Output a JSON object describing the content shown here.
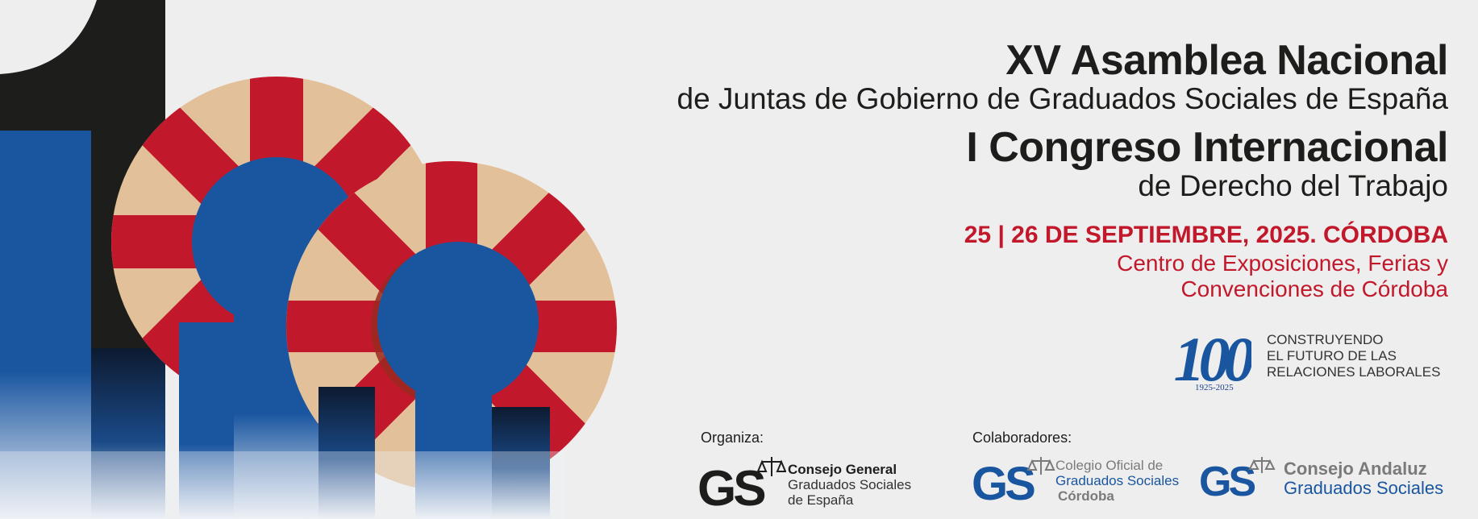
{
  "header": {
    "title_1": "XV Asamblea Nacional",
    "subtitle_1": "de Juntas de Gobierno de Graduados Sociales de España",
    "title_2": "I Congreso Internacional",
    "subtitle_2": "de Derecho del Trabajo"
  },
  "event": {
    "dates": "25 | 26 DE SEPTIEMBRE, 2025. CÓRDOBA",
    "venue_line_1": "Centro de Exposiciones, Ferias y",
    "venue_line_2": "Convenciones de Córdoba"
  },
  "centenary": {
    "number": "100",
    "years": "1925-2025",
    "slogan": [
      "CONSTRUYENDO",
      "EL FUTURO DE LAS",
      "RELACIONES LABORALES"
    ]
  },
  "organiza": {
    "label": "Organiza:",
    "logo_text": "GS",
    "name_bold": "Consejo General",
    "name_line_2": "Graduados Sociales",
    "name_line_3": "de España"
  },
  "colaboradores": {
    "label": "Colaboradores:",
    "items": [
      {
        "logo_text": "GS",
        "line_1": "Colegio Oficial de",
        "line_2": "Graduados Sociales",
        "line_3": "Córdoba"
      },
      {
        "logo_text": "GS",
        "line_1": "Consejo Andaluz",
        "line_2": "Graduados Sociales"
      }
    ]
  },
  "colors": {
    "dark": "#1d1d1b",
    "red": "#c2182b",
    "blue": "#1a56a0",
    "beige": "#e2c19a",
    "grey": "#7a7a7a"
  },
  "icons": [
    "decorative-art-icon",
    "centenary-100-icon",
    "scales-of-justice-icon",
    "gs-logo-icon"
  ]
}
